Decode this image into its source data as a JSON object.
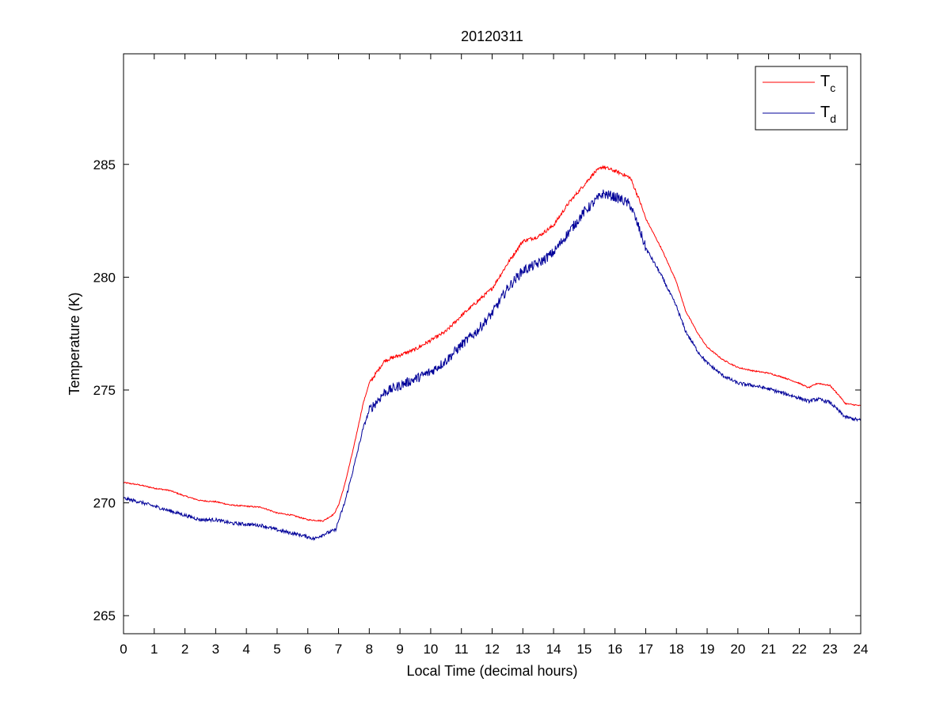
{
  "colors": {
    "tc": "#ff0000",
    "td": "#000099",
    "axes": "#000000",
    "background": "#ffffff"
  },
  "chart_data": {
    "type": "line",
    "title": "20120311",
    "xlabel": "Local Time (decimal hours)",
    "ylabel": "Temperature (K)",
    "xlim": [
      0,
      24
    ],
    "ylim": [
      264.2,
      289.9
    ],
    "xticks": [
      0,
      1,
      2,
      3,
      4,
      5,
      6,
      7,
      8,
      9,
      10,
      11,
      12,
      13,
      14,
      15,
      16,
      17,
      18,
      19,
      20,
      21,
      22,
      23,
      24
    ],
    "yticks": [
      265,
      270,
      275,
      280,
      285
    ],
    "grid": false,
    "legend": {
      "position": "top-right",
      "entries": [
        {
          "main": "T",
          "sub": "c",
          "color": "#ff0000"
        },
        {
          "main": "T",
          "sub": "d",
          "color": "#000099"
        }
      ]
    },
    "series": [
      {
        "name": "Tc",
        "color": "#ff0000",
        "noise": 0.08,
        "points": [
          [
            0,
            270.9
          ],
          [
            0.5,
            270.8
          ],
          [
            1,
            270.65
          ],
          [
            1.5,
            270.55
          ],
          [
            2,
            270.3
          ],
          [
            2.5,
            270.1
          ],
          [
            3,
            270.05
          ],
          [
            3.5,
            269.9
          ],
          [
            4,
            269.85
          ],
          [
            4.5,
            269.8
          ],
          [
            5,
            269.55
          ],
          [
            5.5,
            269.45
          ],
          [
            6,
            269.25
          ],
          [
            6.5,
            269.2
          ],
          [
            6.85,
            269.5
          ],
          [
            7,
            269.9
          ],
          [
            7.2,
            270.8
          ],
          [
            7.5,
            272.5
          ],
          [
            7.8,
            274.4
          ],
          [
            8,
            275.3
          ],
          [
            8.3,
            275.9
          ],
          [
            8.5,
            276.3
          ],
          [
            9,
            276.55
          ],
          [
            9.5,
            276.8
          ],
          [
            10,
            277.2
          ],
          [
            10.5,
            277.6
          ],
          [
            11,
            278.3
          ],
          [
            11.5,
            278.9
          ],
          [
            12,
            279.5
          ],
          [
            12.5,
            280.6
          ],
          [
            13,
            281.6
          ],
          [
            13.5,
            281.8
          ],
          [
            14,
            282.3
          ],
          [
            14.5,
            283.3
          ],
          [
            15,
            284.1
          ],
          [
            15.3,
            284.6
          ],
          [
            15.6,
            284.9
          ],
          [
            15.9,
            284.75
          ],
          [
            16.2,
            284.6
          ],
          [
            16.5,
            284.4
          ],
          [
            16.8,
            283.4
          ],
          [
            17,
            282.6
          ],
          [
            17.5,
            281.3
          ],
          [
            18,
            279.8
          ],
          [
            18.3,
            278.5
          ],
          [
            18.7,
            277.5
          ],
          [
            19,
            276.9
          ],
          [
            19.5,
            276.35
          ],
          [
            20,
            276.0
          ],
          [
            20.5,
            275.85
          ],
          [
            21,
            275.75
          ],
          [
            21.5,
            275.55
          ],
          [
            22,
            275.3
          ],
          [
            22.3,
            275.1
          ],
          [
            22.6,
            275.3
          ],
          [
            23,
            275.2
          ],
          [
            23.3,
            274.75
          ],
          [
            23.5,
            274.4
          ],
          [
            24,
            274.3
          ]
        ]
      },
      {
        "name": "Td",
        "color": "#000099",
        "noise": 0.22,
        "points": [
          [
            0,
            270.2
          ],
          [
            0.5,
            270.05
          ],
          [
            1,
            269.85
          ],
          [
            1.5,
            269.65
          ],
          [
            2,
            269.45
          ],
          [
            2.5,
            269.25
          ],
          [
            3,
            269.25
          ],
          [
            3.5,
            269.1
          ],
          [
            4,
            269.05
          ],
          [
            4.5,
            269.0
          ],
          [
            5,
            268.8
          ],
          [
            5.5,
            268.65
          ],
          [
            6,
            268.5
          ],
          [
            6.2,
            268.4
          ],
          [
            6.5,
            268.6
          ],
          [
            6.9,
            268.8
          ],
          [
            7,
            269.2
          ],
          [
            7.2,
            270.0
          ],
          [
            7.5,
            271.6
          ],
          [
            7.8,
            273.3
          ],
          [
            8,
            274.1
          ],
          [
            8.5,
            274.9
          ],
          [
            9,
            275.2
          ],
          [
            9.5,
            275.5
          ],
          [
            10,
            275.8
          ],
          [
            10.5,
            276.3
          ],
          [
            11,
            277.0
          ],
          [
            11.5,
            277.6
          ],
          [
            12,
            278.4
          ],
          [
            12.5,
            279.5
          ],
          [
            13,
            280.3
          ],
          [
            13.5,
            280.6
          ],
          [
            14,
            281.1
          ],
          [
            14.5,
            282.0
          ],
          [
            15,
            282.9
          ],
          [
            15.3,
            283.3
          ],
          [
            15.6,
            283.7
          ],
          [
            15.9,
            283.6
          ],
          [
            16.2,
            283.45
          ],
          [
            16.5,
            283.2
          ],
          [
            16.8,
            282.1
          ],
          [
            17,
            281.3
          ],
          [
            17.5,
            280.1
          ],
          [
            18,
            278.7
          ],
          [
            18.3,
            277.6
          ],
          [
            18.7,
            276.7
          ],
          [
            19,
            276.2
          ],
          [
            19.5,
            275.65
          ],
          [
            20,
            275.3
          ],
          [
            20.5,
            275.2
          ],
          [
            21,
            275.05
          ],
          [
            21.5,
            274.85
          ],
          [
            22,
            274.65
          ],
          [
            22.3,
            274.5
          ],
          [
            22.6,
            274.6
          ],
          [
            23,
            274.45
          ],
          [
            23.3,
            274.05
          ],
          [
            23.5,
            273.8
          ],
          [
            24,
            273.65
          ]
        ]
      }
    ]
  }
}
